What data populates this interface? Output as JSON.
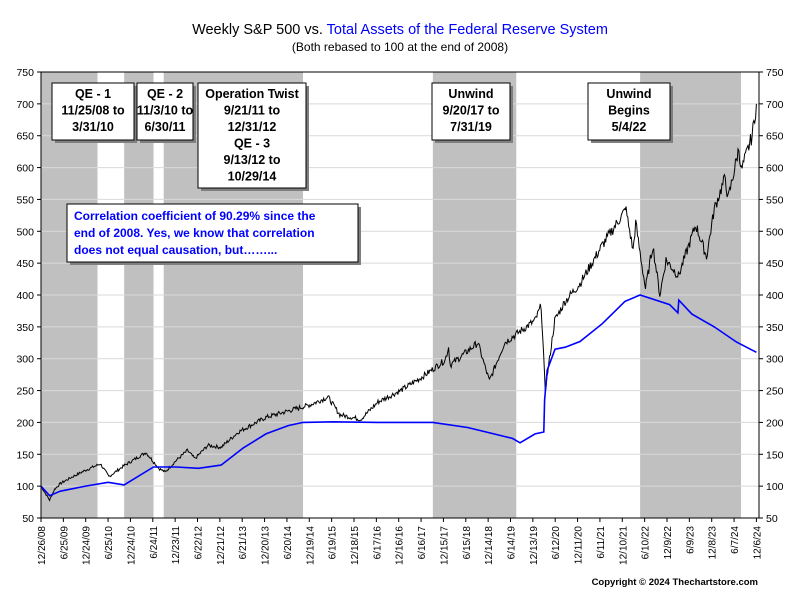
{
  "chart_data": {
    "type": "line",
    "title_part1": "Weekly S&P 500 vs. ",
    "title_part2": "Total Assets of the Federal Reserve System",
    "subtitle": "(Both rebased to 100 at the end of 2008)",
    "copyright": "Copyright © 2024 Thechartstore.com",
    "ylim": [
      50,
      750
    ],
    "yticks": [
      50,
      100,
      150,
      200,
      250,
      300,
      350,
      400,
      450,
      500,
      550,
      600,
      650,
      700,
      750
    ],
    "xlim": [
      "2008-12-26",
      "2024-12-27"
    ],
    "xtick_labels": [
      "12/26/08",
      "6/25/09",
      "12/24/09",
      "6/25/10",
      "12/24/10",
      "6/24/11",
      "12/23/11",
      "6/22/12",
      "12/21/12",
      "6/21/13",
      "12/20/13",
      "6/20/14",
      "12/19/14",
      "6/19/15",
      "12/18/15",
      "6/17/16",
      "12/16/16",
      "6/16/17",
      "12/15/17",
      "6/15/18",
      "12/14/18",
      "6/14/19",
      "12/13/19",
      "6/12/20",
      "12/11/20",
      "6/11/21",
      "12/10/21",
      "6/10/22",
      "12/9/22",
      "6/9/23",
      "12/8/23",
      "6/7/24",
      "12/6/24"
    ],
    "shaded_periods": [
      {
        "start": "2008-11-25",
        "end": "2010-03-31"
      },
      {
        "start": "2010-11-03",
        "end": "2011-06-30"
      },
      {
        "start": "2011-09-21",
        "end": "2014-10-29"
      },
      {
        "start": "2017-09-20",
        "end": "2019-07-31"
      },
      {
        "start": "2022-05-04",
        "end": "2024-12-27"
      }
    ],
    "annotations": [
      {
        "lines": [
          "QE - 1",
          "11/25/08 to",
          "3/31/10"
        ]
      },
      {
        "lines": [
          "QE - 2",
          "11/3/10 to",
          "6/30/11"
        ]
      },
      {
        "lines": [
          "Operation Twist",
          "9/21/11 to",
          "12/31/12",
          "QE - 3",
          "9/13/12 to",
          "10/29/14"
        ]
      },
      {
        "lines": [
          "Unwind",
          "9/20/17 to",
          "7/31/19"
        ]
      },
      {
        "lines": [
          "Unwind",
          "Begins",
          "5/4/22"
        ]
      }
    ],
    "correlation_note": [
      "Correlation coefficient of 90.29% since the",
      "end of 2008. Yes, we know that correlation",
      "does not equal causation, but……..."
    ],
    "series": [
      {
        "color": "#000000",
        "points": [
          [
            "2008-12-26",
            100
          ],
          [
            "2009-03-06",
            78
          ],
          [
            "2009-04-15",
            95
          ],
          [
            "2009-06-01",
            104
          ],
          [
            "2009-09-01",
            114
          ],
          [
            "2009-12-24",
            125
          ],
          [
            "2010-04-23",
            135
          ],
          [
            "2010-07-02",
            115
          ],
          [
            "2010-11-01",
            132
          ],
          [
            "2011-04-29",
            153
          ],
          [
            "2011-08-12",
            128
          ],
          [
            "2011-10-03",
            122
          ],
          [
            "2011-12-30",
            140
          ],
          [
            "2012-04-01",
            156
          ],
          [
            "2012-06-01",
            143
          ],
          [
            "2012-09-14",
            164
          ],
          [
            "2012-12-31",
            161
          ],
          [
            "2013-05-21",
            185
          ],
          [
            "2013-12-31",
            208
          ],
          [
            "2014-06-30",
            218
          ],
          [
            "2014-12-31",
            228
          ],
          [
            "2015-05-20",
            240
          ],
          [
            "2015-08-25",
            212
          ],
          [
            "2016-02-11",
            205
          ],
          [
            "2016-06-30",
            232
          ],
          [
            "2016-12-31",
            250
          ],
          [
            "2017-06-30",
            272
          ],
          [
            "2017-12-29",
            298
          ],
          [
            "2018-01-26",
            318
          ],
          [
            "2018-02-09",
            290
          ],
          [
            "2018-09-21",
            325
          ],
          [
            "2018-12-24",
            265
          ],
          [
            "2019-04-26",
            325
          ],
          [
            "2019-12-31",
            360
          ],
          [
            "2020-02-19",
            383
          ],
          [
            "2020-03-23",
            250
          ],
          [
            "2020-06-08",
            360
          ],
          [
            "2020-08-31",
            390
          ],
          [
            "2020-12-31",
            418
          ],
          [
            "2021-06-30",
            478
          ],
          [
            "2021-12-31",
            532
          ],
          [
            "2022-01-03",
            540
          ],
          [
            "2022-03-08",
            470
          ],
          [
            "2022-03-29",
            513
          ],
          [
            "2022-06-17",
            410
          ],
          [
            "2022-08-16",
            478
          ],
          [
            "2022-10-12",
            400
          ],
          [
            "2022-12-01",
            455
          ],
          [
            "2023-03-13",
            430
          ],
          [
            "2023-07-31",
            510
          ],
          [
            "2023-10-27",
            460
          ],
          [
            "2023-12-29",
            535
          ],
          [
            "2024-03-28",
            585
          ],
          [
            "2024-04-19",
            550
          ],
          [
            "2024-07-16",
            630
          ],
          [
            "2024-08-05",
            595
          ],
          [
            "2024-11-01",
            650
          ],
          [
            "2024-12-06",
            700
          ]
        ]
      },
      {
        "color": "#0000ff",
        "points": [
          [
            "2008-12-26",
            100
          ],
          [
            "2009-03-06",
            85
          ],
          [
            "2009-06-01",
            92
          ],
          [
            "2009-12-24",
            100
          ],
          [
            "2010-06-25",
            106
          ],
          [
            "2010-11-03",
            102
          ],
          [
            "2011-06-30",
            130
          ],
          [
            "2011-12-30",
            130
          ],
          [
            "2012-06-30",
            128
          ],
          [
            "2012-12-31",
            133
          ],
          [
            "2013-06-30",
            160
          ],
          [
            "2013-12-31",
            182
          ],
          [
            "2014-06-30",
            195
          ],
          [
            "2014-10-29",
            200
          ],
          [
            "2015-06-30",
            201
          ],
          [
            "2016-06-30",
            200
          ],
          [
            "2017-06-30",
            200
          ],
          [
            "2017-09-20",
            200
          ],
          [
            "2018-06-30",
            192
          ],
          [
            "2019-06-30",
            175
          ],
          [
            "2019-08-30",
            168
          ],
          [
            "2019-12-31",
            182
          ],
          [
            "2020-03-11",
            185
          ],
          [
            "2020-03-18",
            235
          ],
          [
            "2020-04-08",
            282
          ],
          [
            "2020-06-10",
            315
          ],
          [
            "2020-09-01",
            318
          ],
          [
            "2020-12-31",
            327
          ],
          [
            "2021-06-30",
            355
          ],
          [
            "2021-12-31",
            390
          ],
          [
            "2022-05-04",
            400
          ],
          [
            "2022-12-30",
            385
          ],
          [
            "2023-03-08",
            372
          ],
          [
            "2023-03-15",
            392
          ],
          [
            "2023-06-30",
            370
          ],
          [
            "2023-12-29",
            350
          ],
          [
            "2024-06-28",
            326
          ],
          [
            "2024-12-06",
            310
          ]
        ]
      }
    ]
  }
}
